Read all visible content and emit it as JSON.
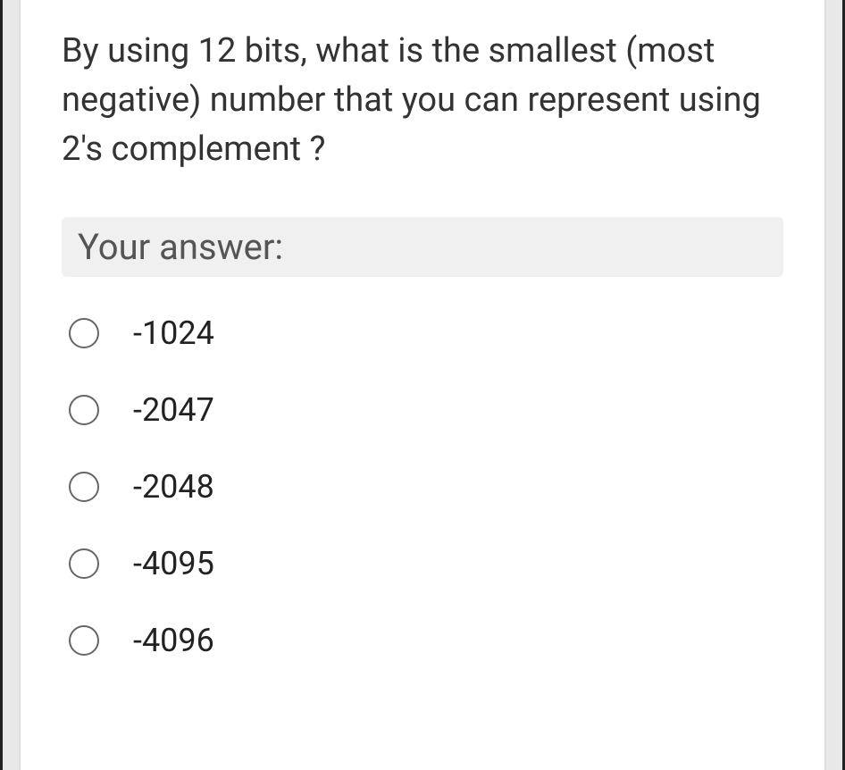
{
  "question": {
    "text": "By using 12 bits, what is the smallest (most negative) number that you can represent using 2's complement ?"
  },
  "answerPrompt": "Your answer:",
  "options": [
    {
      "label": "-1024",
      "selected": false
    },
    {
      "label": "-2047",
      "selected": false
    },
    {
      "label": "-2048",
      "selected": false
    },
    {
      "label": "-4095",
      "selected": false
    },
    {
      "label": "-4096",
      "selected": false
    }
  ],
  "colors": {
    "pageBackground": "#e8e8e8",
    "cardBackground": "#ffffff",
    "questionText": "#333333",
    "answerLabelBg": "#f0f0f0",
    "answerLabelText": "#555555",
    "radioBorder": "#666666",
    "optionText": "#222222"
  }
}
